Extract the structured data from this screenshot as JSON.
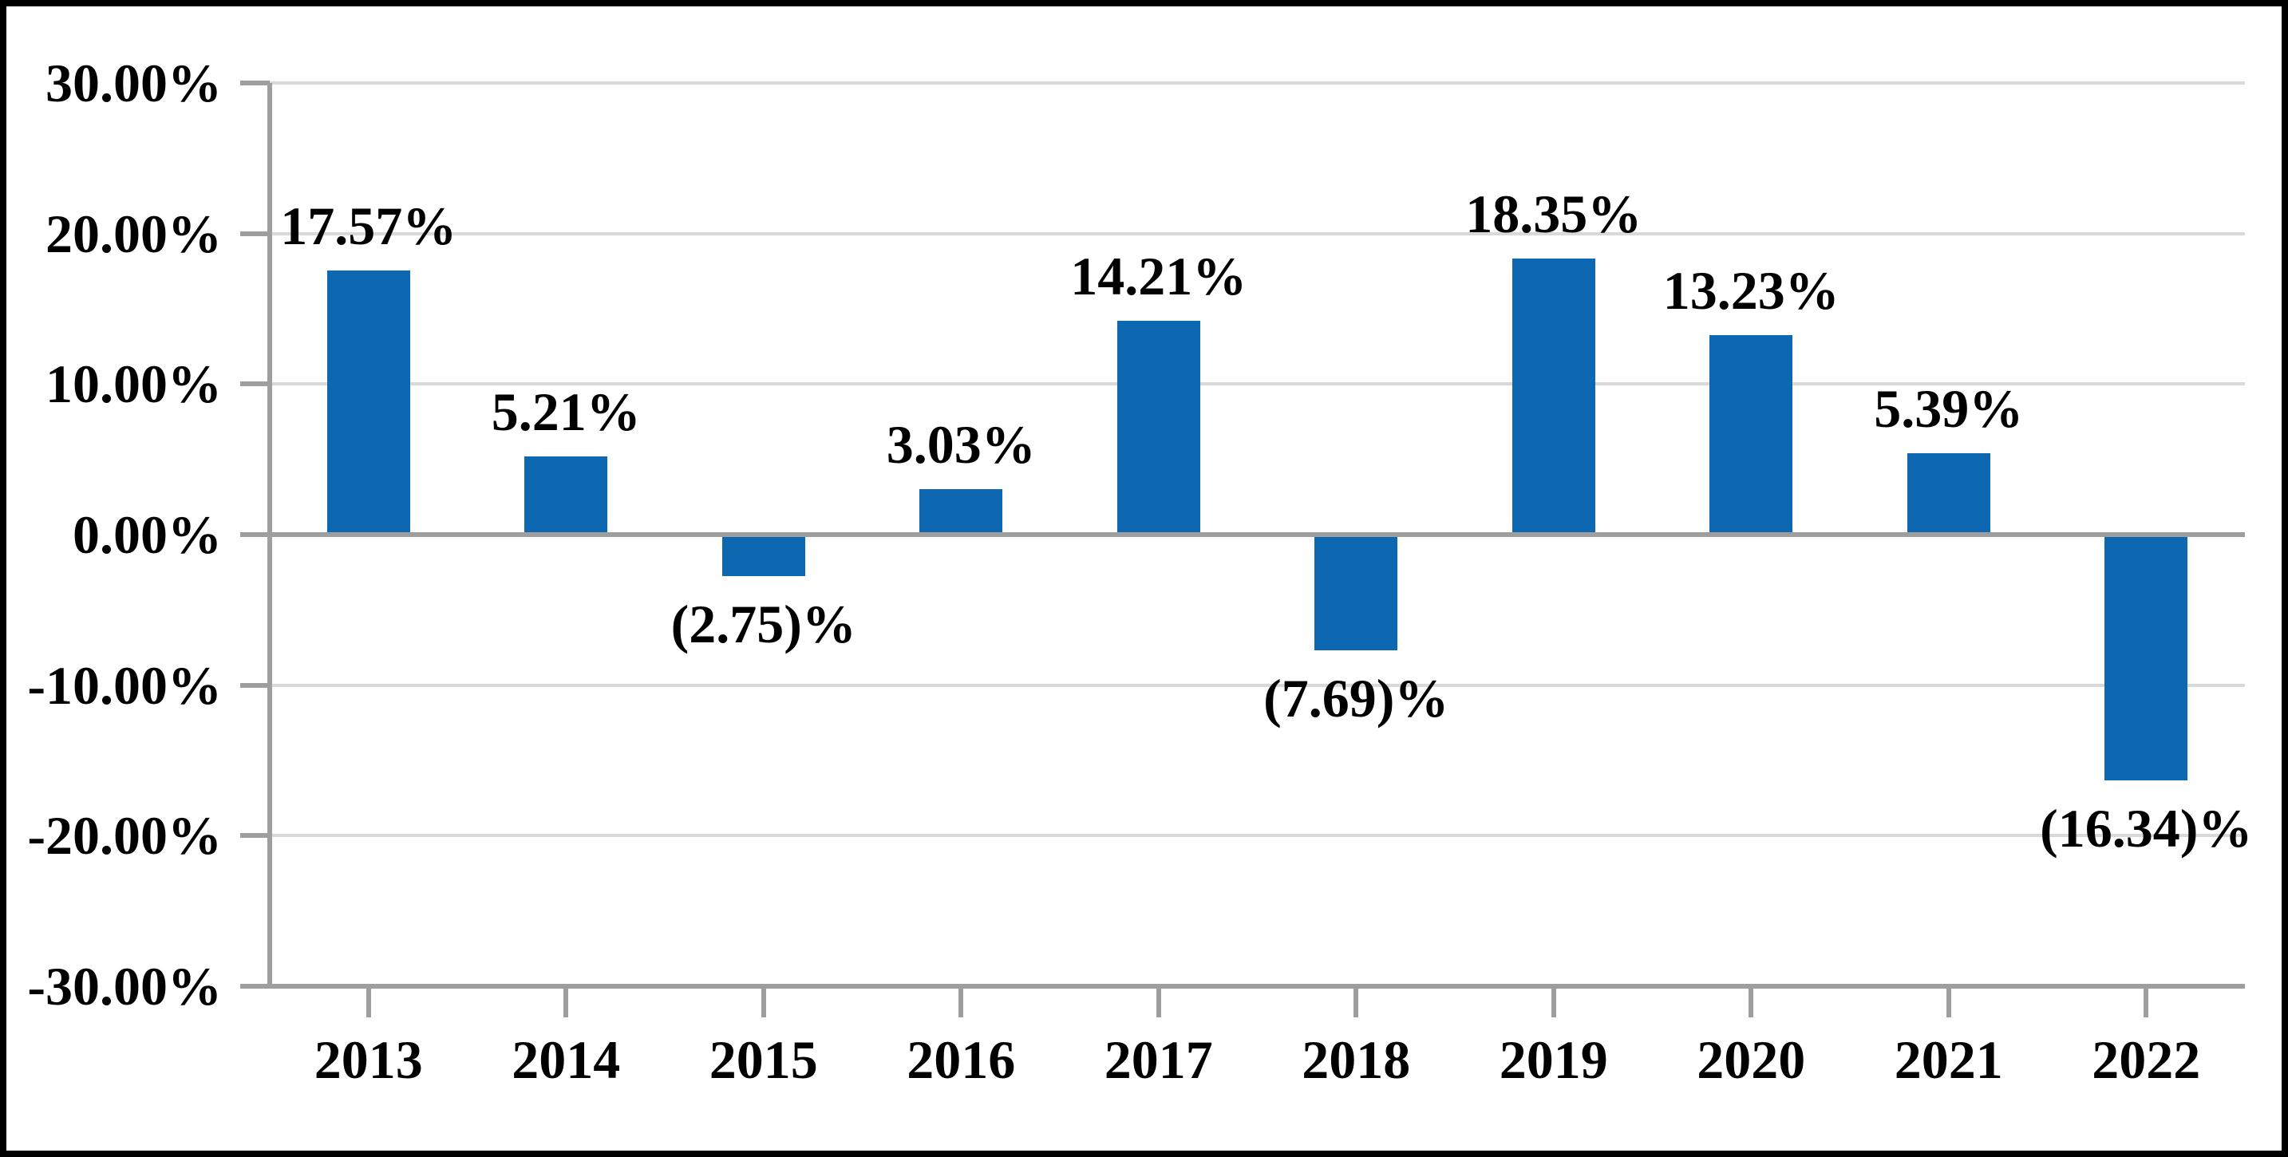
{
  "chart_data": {
    "type": "bar",
    "title": "",
    "xlabel": "",
    "ylabel": "",
    "categories": [
      "2013",
      "2014",
      "2015",
      "2016",
      "2017",
      "2018",
      "2019",
      "2020",
      "2021",
      "2022"
    ],
    "values": [
      17.57,
      5.21,
      -2.75,
      3.03,
      14.21,
      -7.69,
      18.35,
      13.23,
      5.39,
      -16.34
    ],
    "data_labels": [
      "17.57%",
      "5.21%",
      "(2.75)%",
      "3.03%",
      "14.21%",
      "(7.69)%",
      "18.35%",
      "13.23%",
      "5.39%",
      "(16.34)%"
    ],
    "y_axis_tick_labels": [
      "30.00%",
      "20.00%",
      "10.00%",
      "0.00%",
      "-10.00%",
      "-20.00%",
      "-30.00%"
    ],
    "y_axis_tick_values": [
      30,
      20,
      10,
      0,
      -10,
      -20,
      -30
    ],
    "ylim": [
      -30,
      30
    ],
    "grid": "horizontal",
    "legend": "none",
    "colors": {
      "bar_fill": "#0D68B1",
      "gridline": "#D9D9D9",
      "axis_line": "#9E9E9E",
      "label_text": "#000000",
      "frame_border": "#000000",
      "background": "#FFFFFF"
    }
  }
}
